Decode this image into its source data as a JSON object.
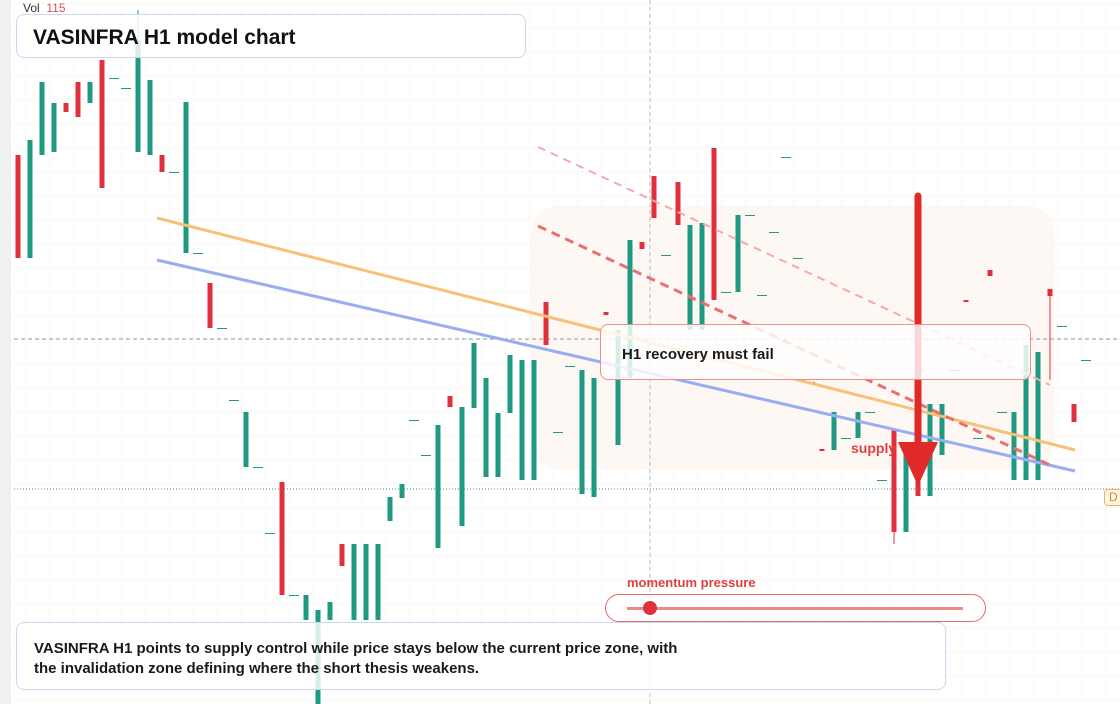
{
  "vol_label": "Vol",
  "vol_value": "115",
  "chart_data": {
    "type": "candlestick",
    "title": "VASINFRA H1 model chart",
    "up_color": "#1f9a82",
    "down_color": "#e0303d",
    "ylim": [
      0,
      704
    ],
    "open": [
      549,
      446,
      549,
      552,
      601,
      622,
      601,
      644,
      626,
      616,
      552,
      549,
      549,
      532,
      451,
      451,
      421,
      376,
      304,
      237,
      237,
      171,
      222,
      109,
      84,
      0,
      84,
      160,
      84,
      84,
      84,
      183,
      206,
      284,
      249,
      156,
      308,
      178,
      296,
      227,
      227,
      291,
      224,
      224,
      402,
      272,
      338,
      210,
      207,
      392,
      259,
      326,
      462,
      528,
      449,
      522,
      374,
      374,
      556,
      412,
      412,
      489,
      409,
      472,
      547,
      446,
      322,
      255,
      254,
      266,
      266,
      292,
      224,
      274,
      172,
      300,
      208,
      249,
      334,
      404,
      266,
      434,
      292,
      224,
      224,
      224,
      415,
      378,
      300,
      344
    ],
    "high": [
      549,
      564,
      622,
      601,
      601,
      622,
      622,
      644,
      626,
      616,
      694,
      624,
      549,
      532,
      602,
      451,
      421,
      376,
      304,
      292,
      237,
      171,
      222,
      109,
      109,
      94,
      102,
      160,
      160,
      160,
      160,
      207,
      220,
      284,
      249,
      279,
      308,
      297,
      361,
      326,
      291,
      349,
      344,
      344,
      402,
      272,
      338,
      334,
      326,
      392,
      374,
      464,
      462,
      528,
      449,
      522,
      479,
      481,
      556,
      412,
      489,
      489,
      409,
      472,
      547,
      446,
      322,
      255,
      292,
      266,
      292,
      292,
      224,
      274,
      262,
      300,
      300,
      300,
      334,
      404,
      266,
      434,
      292,
      292,
      359,
      352,
      415,
      378,
      300,
      344
    ],
    "low": [
      446,
      446,
      549,
      552,
      592,
      587,
      601,
      516,
      626,
      616,
      552,
      549,
      532,
      532,
      451,
      451,
      376,
      376,
      304,
      237,
      237,
      171,
      109,
      109,
      84,
      0,
      84,
      138,
      84,
      84,
      84,
      183,
      206,
      284,
      249,
      156,
      297,
      178,
      296,
      227,
      227,
      291,
      224,
      224,
      359,
      272,
      338,
      210,
      207,
      389,
      259,
      326,
      455,
      486,
      449,
      479,
      374,
      374,
      404,
      412,
      412,
      489,
      409,
      472,
      547,
      446,
      322,
      253,
      254,
      266,
      266,
      292,
      224,
      160,
      172,
      208,
      208,
      249,
      334,
      402,
      266,
      428,
      292,
      224,
      224,
      224,
      324,
      378,
      282,
      344
    ],
    "close": [
      446,
      564,
      622,
      601,
      592,
      587,
      622,
      516,
      626,
      616,
      664,
      624,
      532,
      532,
      602,
      451,
      376,
      376,
      304,
      292,
      237,
      171,
      109,
      109,
      109,
      94,
      102,
      138,
      160,
      160,
      160,
      207,
      220,
      284,
      249,
      279,
      297,
      297,
      361,
      326,
      291,
      349,
      344,
      344,
      359,
      272,
      338,
      334,
      326,
      389,
      374,
      464,
      455,
      486,
      449,
      479,
      479,
      481,
      404,
      412,
      489,
      489,
      409,
      472,
      547,
      446,
      322,
      253,
      292,
      266,
      292,
      292,
      224,
      172,
      262,
      208,
      300,
      300,
      334,
      402,
      266,
      428,
      292,
      292,
      359,
      352,
      408,
      378,
      282,
      344
    ],
    "annotation": "H1 recovery must fail",
    "zone_label": "supply",
    "slider_label": "momentum pressure",
    "description": "VASINFRA H1 points to supply control while price stays below the current price zone, with the invalidation zone defining where the short thesis weakens.",
    "edge_tag": "D"
  }
}
